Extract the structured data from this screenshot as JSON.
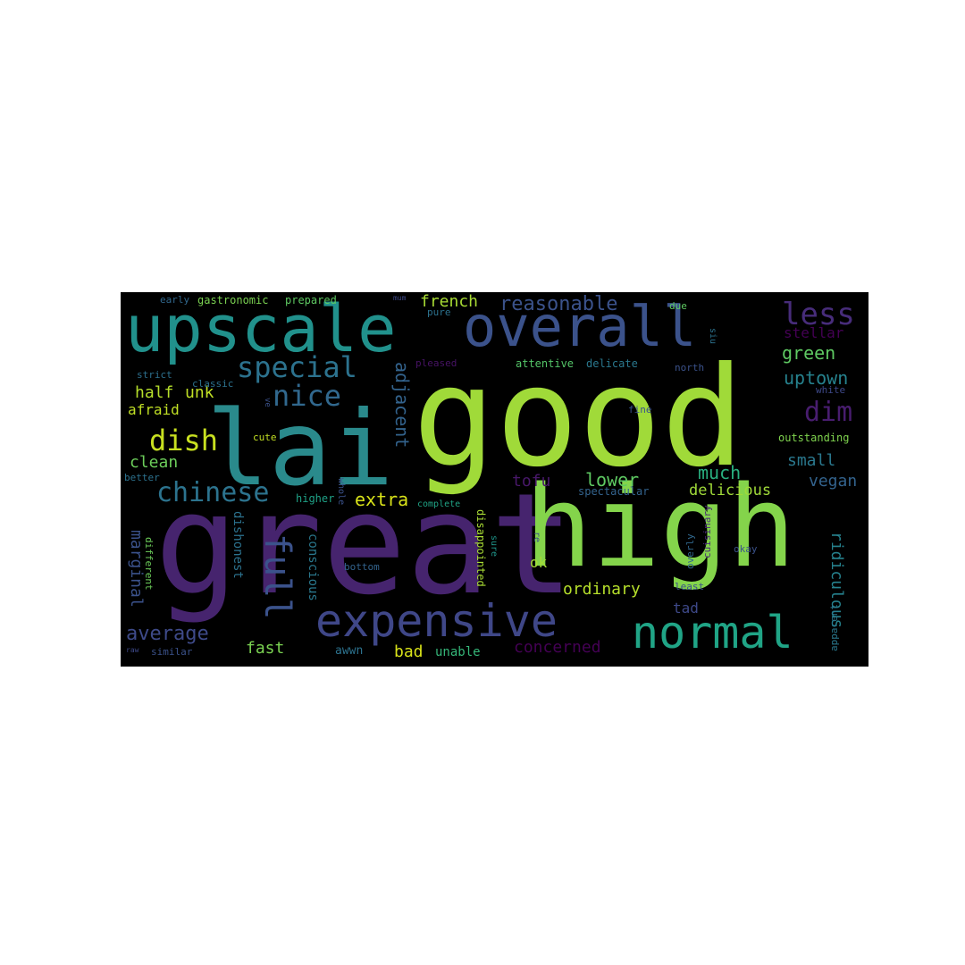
{
  "wordcloud": {
    "background": "#000000",
    "palette": {
      "dark_purple": "#46246e",
      "violet": "#472c7a",
      "slate": "#3b528b",
      "blue": "#33638d",
      "teal": "#2a8a8c",
      "green_teal": "#21a586",
      "green": "#5ec962",
      "lime": "#a0da39",
      "yellow": "#d0e11c"
    },
    "words": [
      {
        "text": "good",
        "color": "#a0da39"
      },
      {
        "text": "great",
        "color": "#46246e"
      },
      {
        "text": "high",
        "color": "#84d44b"
      },
      {
        "text": "lai",
        "color": "#2a8a8c"
      },
      {
        "text": "upscale",
        "color": "#21918c"
      },
      {
        "text": "overall",
        "color": "#3b528b"
      },
      {
        "text": "expensive",
        "color": "#3f4788"
      },
      {
        "text": "normal",
        "color": "#20a486"
      },
      {
        "text": "less",
        "color": "#472c7a"
      },
      {
        "text": "special",
        "color": "#2c728e"
      },
      {
        "text": "nice",
        "color": "#31688e"
      },
      {
        "text": "chinese",
        "color": "#2c738e"
      },
      {
        "text": "dish",
        "color": "#c8e020"
      },
      {
        "text": "dim",
        "color": "#481d6f"
      },
      {
        "text": "full",
        "color": "#3b528b"
      },
      {
        "text": "adjacent",
        "color": "#33638d"
      },
      {
        "text": "reasonable",
        "color": "#3b528b"
      },
      {
        "text": "french",
        "color": "#a8db34"
      },
      {
        "text": "green",
        "color": "#5ec962"
      },
      {
        "text": "uptown",
        "color": "#26828e"
      },
      {
        "text": "stellar",
        "color": "#440154"
      },
      {
        "text": "half",
        "color": "#b5de2b"
      },
      {
        "text": "afraid",
        "color": "#c0df25"
      },
      {
        "text": "unk",
        "color": "#c0df25"
      },
      {
        "text": "clean",
        "color": "#6ccd5a"
      },
      {
        "text": "extra",
        "color": "#d8e219"
      },
      {
        "text": "much",
        "color": "#29af7f"
      },
      {
        "text": "lower",
        "color": "#5ec962"
      },
      {
        "text": "tofu",
        "color": "#48186a"
      },
      {
        "text": "small",
        "color": "#2a788e"
      },
      {
        "text": "delicious",
        "color": "#a0da39"
      },
      {
        "text": "vegan",
        "color": "#33638d"
      },
      {
        "text": "marginal",
        "color": "#3b528b"
      },
      {
        "text": "ordinary",
        "color": "#b5de2b"
      },
      {
        "text": "average",
        "color": "#3e4a89"
      },
      {
        "text": "fast",
        "color": "#7ad151"
      },
      {
        "text": "bad",
        "color": "#d8e219"
      },
      {
        "text": "unable",
        "color": "#35b779"
      },
      {
        "text": "concerned",
        "color": "#440154"
      },
      {
        "text": "ok",
        "color": "#a5db36"
      },
      {
        "text": "tad",
        "color": "#3e4989"
      },
      {
        "text": "awwn",
        "color": "#2c728e"
      },
      {
        "text": "conscious",
        "color": "#2a788e"
      },
      {
        "text": "dishonest",
        "color": "#2c728e"
      },
      {
        "text": "ridiculous",
        "color": "#26828e"
      },
      {
        "text": "outstanding",
        "color": "#7fd34e"
      },
      {
        "text": "early",
        "color": "#31688e"
      },
      {
        "text": "gastronomic",
        "color": "#7ad151"
      },
      {
        "text": "prepared",
        "color": "#5ec962"
      },
      {
        "text": "strict",
        "color": "#2d708e"
      },
      {
        "text": "classic",
        "color": "#2c728e"
      },
      {
        "text": "pleased",
        "color": "#471365"
      },
      {
        "text": "attentive",
        "color": "#54c568"
      },
      {
        "text": "delicate",
        "color": "#2a788e"
      },
      {
        "text": "north",
        "color": "#3b528b"
      },
      {
        "text": "white",
        "color": "#3e4989"
      },
      {
        "text": "fine",
        "color": "#3b528b"
      },
      {
        "text": "cute",
        "color": "#c2df23"
      },
      {
        "text": "better",
        "color": "#2c728e"
      },
      {
        "text": "higher",
        "color": "#1fa287"
      },
      {
        "text": "complete",
        "color": "#20a486"
      },
      {
        "text": "spectacular",
        "color": "#33638d"
      },
      {
        "text": "whole",
        "color": "#3b528b"
      },
      {
        "text": "different",
        "color": "#6ccd5a"
      },
      {
        "text": "bottom",
        "color": "#33638d"
      },
      {
        "text": "disappointed",
        "color": "#a8db34"
      },
      {
        "text": "sure",
        "color": "#1f968b"
      },
      {
        "text": "overly",
        "color": "#31688e"
      },
      {
        "text": "cuisinary",
        "color": "#482878"
      },
      {
        "text": "okay",
        "color": "#3b528b"
      },
      {
        "text": "least",
        "color": "#3b528b"
      },
      {
        "text": "apparent",
        "color": "#2a788e"
      },
      {
        "text": "similar",
        "color": "#3b528b"
      },
      {
        "text": "due",
        "color": "#5ec962"
      },
      {
        "text": "pure",
        "color": "#2c728e"
      },
      {
        "text": "siu",
        "color": "#2c728e"
      },
      {
        "text": "re",
        "color": "#3b528b"
      },
      {
        "text": "mum",
        "color": "#3e4989"
      },
      {
        "text": "raw",
        "color": "#3e4989"
      },
      {
        "text": "ve",
        "color": "#3b528b"
      }
    ]
  }
}
